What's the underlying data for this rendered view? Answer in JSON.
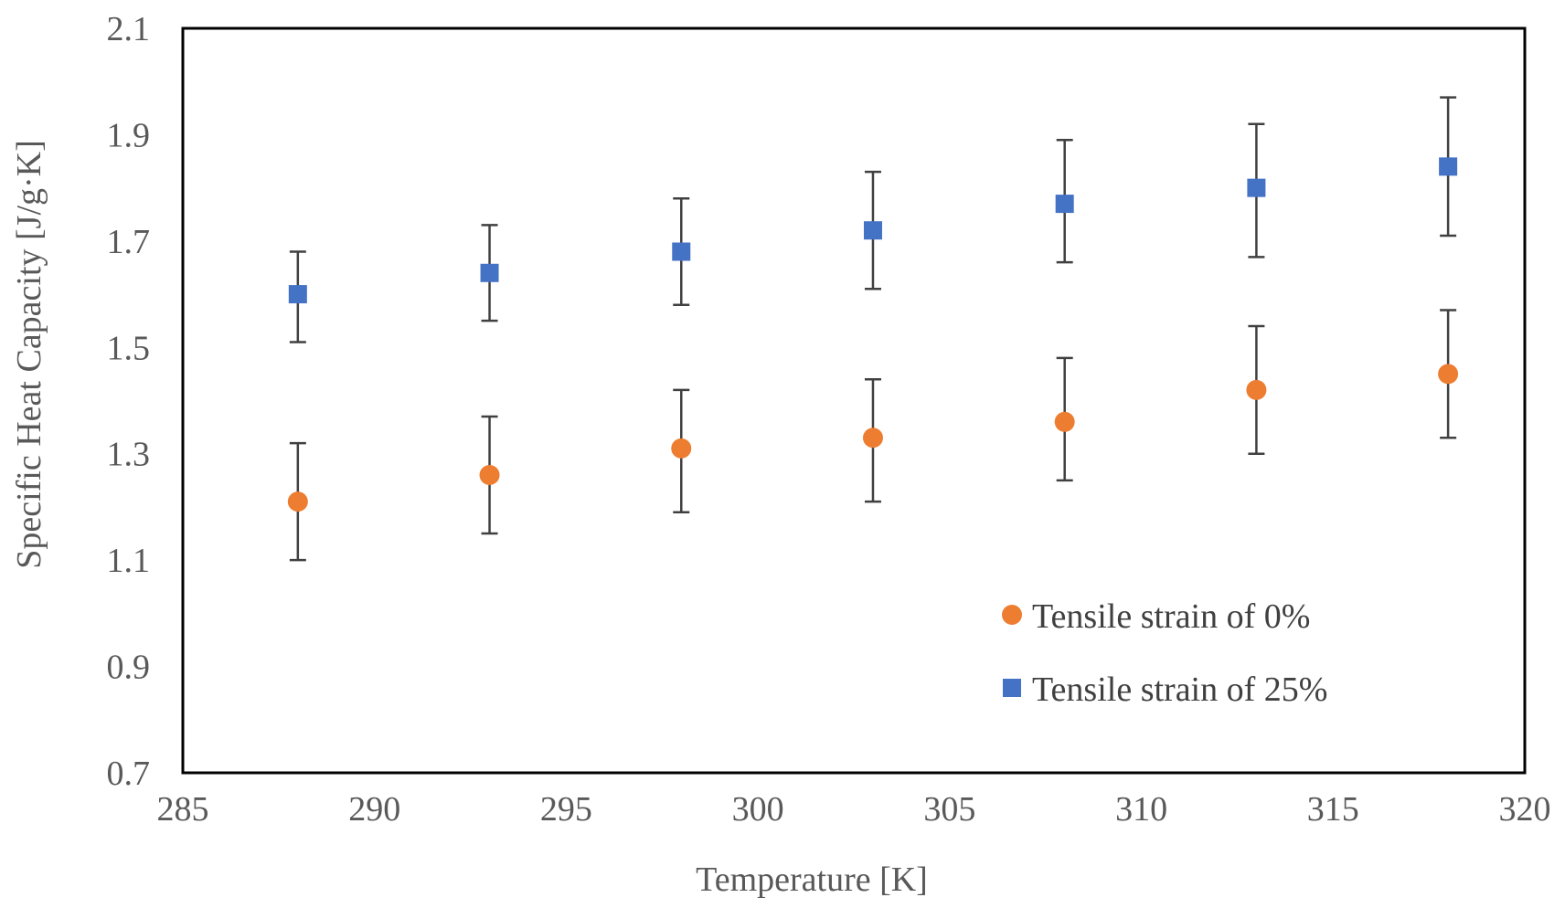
{
  "chart_data": {
    "type": "scatter",
    "title": "",
    "xlabel": "Temperature [K]",
    "ylabel": "Specific Heat Capacity [J/g·K]",
    "xlim": [
      285,
      320
    ],
    "ylim": [
      0.7,
      2.1
    ],
    "xticks": [
      "285",
      "290",
      "295",
      "300",
      "305",
      "310",
      "315",
      "320"
    ],
    "yticks": [
      "0.7",
      "0.9",
      "1.1",
      "1.3",
      "1.5",
      "1.7",
      "1.9",
      "2.1"
    ],
    "grid": false,
    "legend_position": "bottom-right",
    "series": [
      {
        "name": "Tensile strain of 0%",
        "marker": "circle",
        "color": "#ED7D31",
        "x": [
          288,
          293,
          298,
          303,
          308,
          313,
          318
        ],
        "y": [
          1.21,
          1.26,
          1.31,
          1.33,
          1.36,
          1.42,
          1.45
        ],
        "err_low": [
          1.1,
          1.15,
          1.19,
          1.21,
          1.25,
          1.3,
          1.33
        ],
        "err_high": [
          1.32,
          1.37,
          1.42,
          1.44,
          1.48,
          1.54,
          1.57
        ]
      },
      {
        "name": "Tensile strain of 25%",
        "marker": "square",
        "color": "#4472C4",
        "x": [
          288,
          293,
          298,
          303,
          308,
          313,
          318
        ],
        "y": [
          1.6,
          1.64,
          1.68,
          1.72,
          1.77,
          1.8,
          1.84
        ],
        "err_low": [
          1.51,
          1.55,
          1.58,
          1.61,
          1.66,
          1.67,
          1.71
        ],
        "err_high": [
          1.68,
          1.73,
          1.78,
          1.83,
          1.89,
          1.92,
          1.97
        ]
      }
    ],
    "error_bar_color": "#404040",
    "frame_color": "#000000"
  }
}
